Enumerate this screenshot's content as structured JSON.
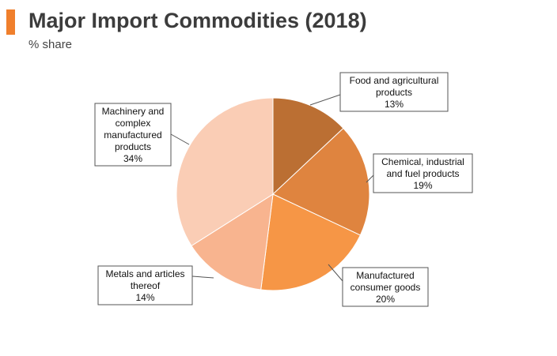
{
  "header": {
    "title": "Major Import Commodities (2018)",
    "subtitle": "% share",
    "accent_color": "#f07f2c"
  },
  "chart_data": {
    "type": "pie",
    "title": "Major Import Commodities (2018)",
    "subtitle": "% share",
    "legend": "none",
    "slices": [
      {
        "label": "Food and agricultural products",
        "value": 13,
        "percent_label": "13%",
        "color": "#bb6f33"
      },
      {
        "label": "Chemical, industrial and fuel products",
        "value": 19,
        "percent_label": "19%",
        "color": "#df843f"
      },
      {
        "label": "Manufactured consumer goods",
        "value": 20,
        "percent_label": "20%",
        "color": "#f69646"
      },
      {
        "label": "Metals and articles thereof",
        "value": 14,
        "percent_label": "14%",
        "color": "#f8b48f"
      },
      {
        "label": "Machinery and complex manufactured products",
        "value": 34,
        "percent_label": "34%",
        "color": "#facdb5"
      }
    ]
  }
}
